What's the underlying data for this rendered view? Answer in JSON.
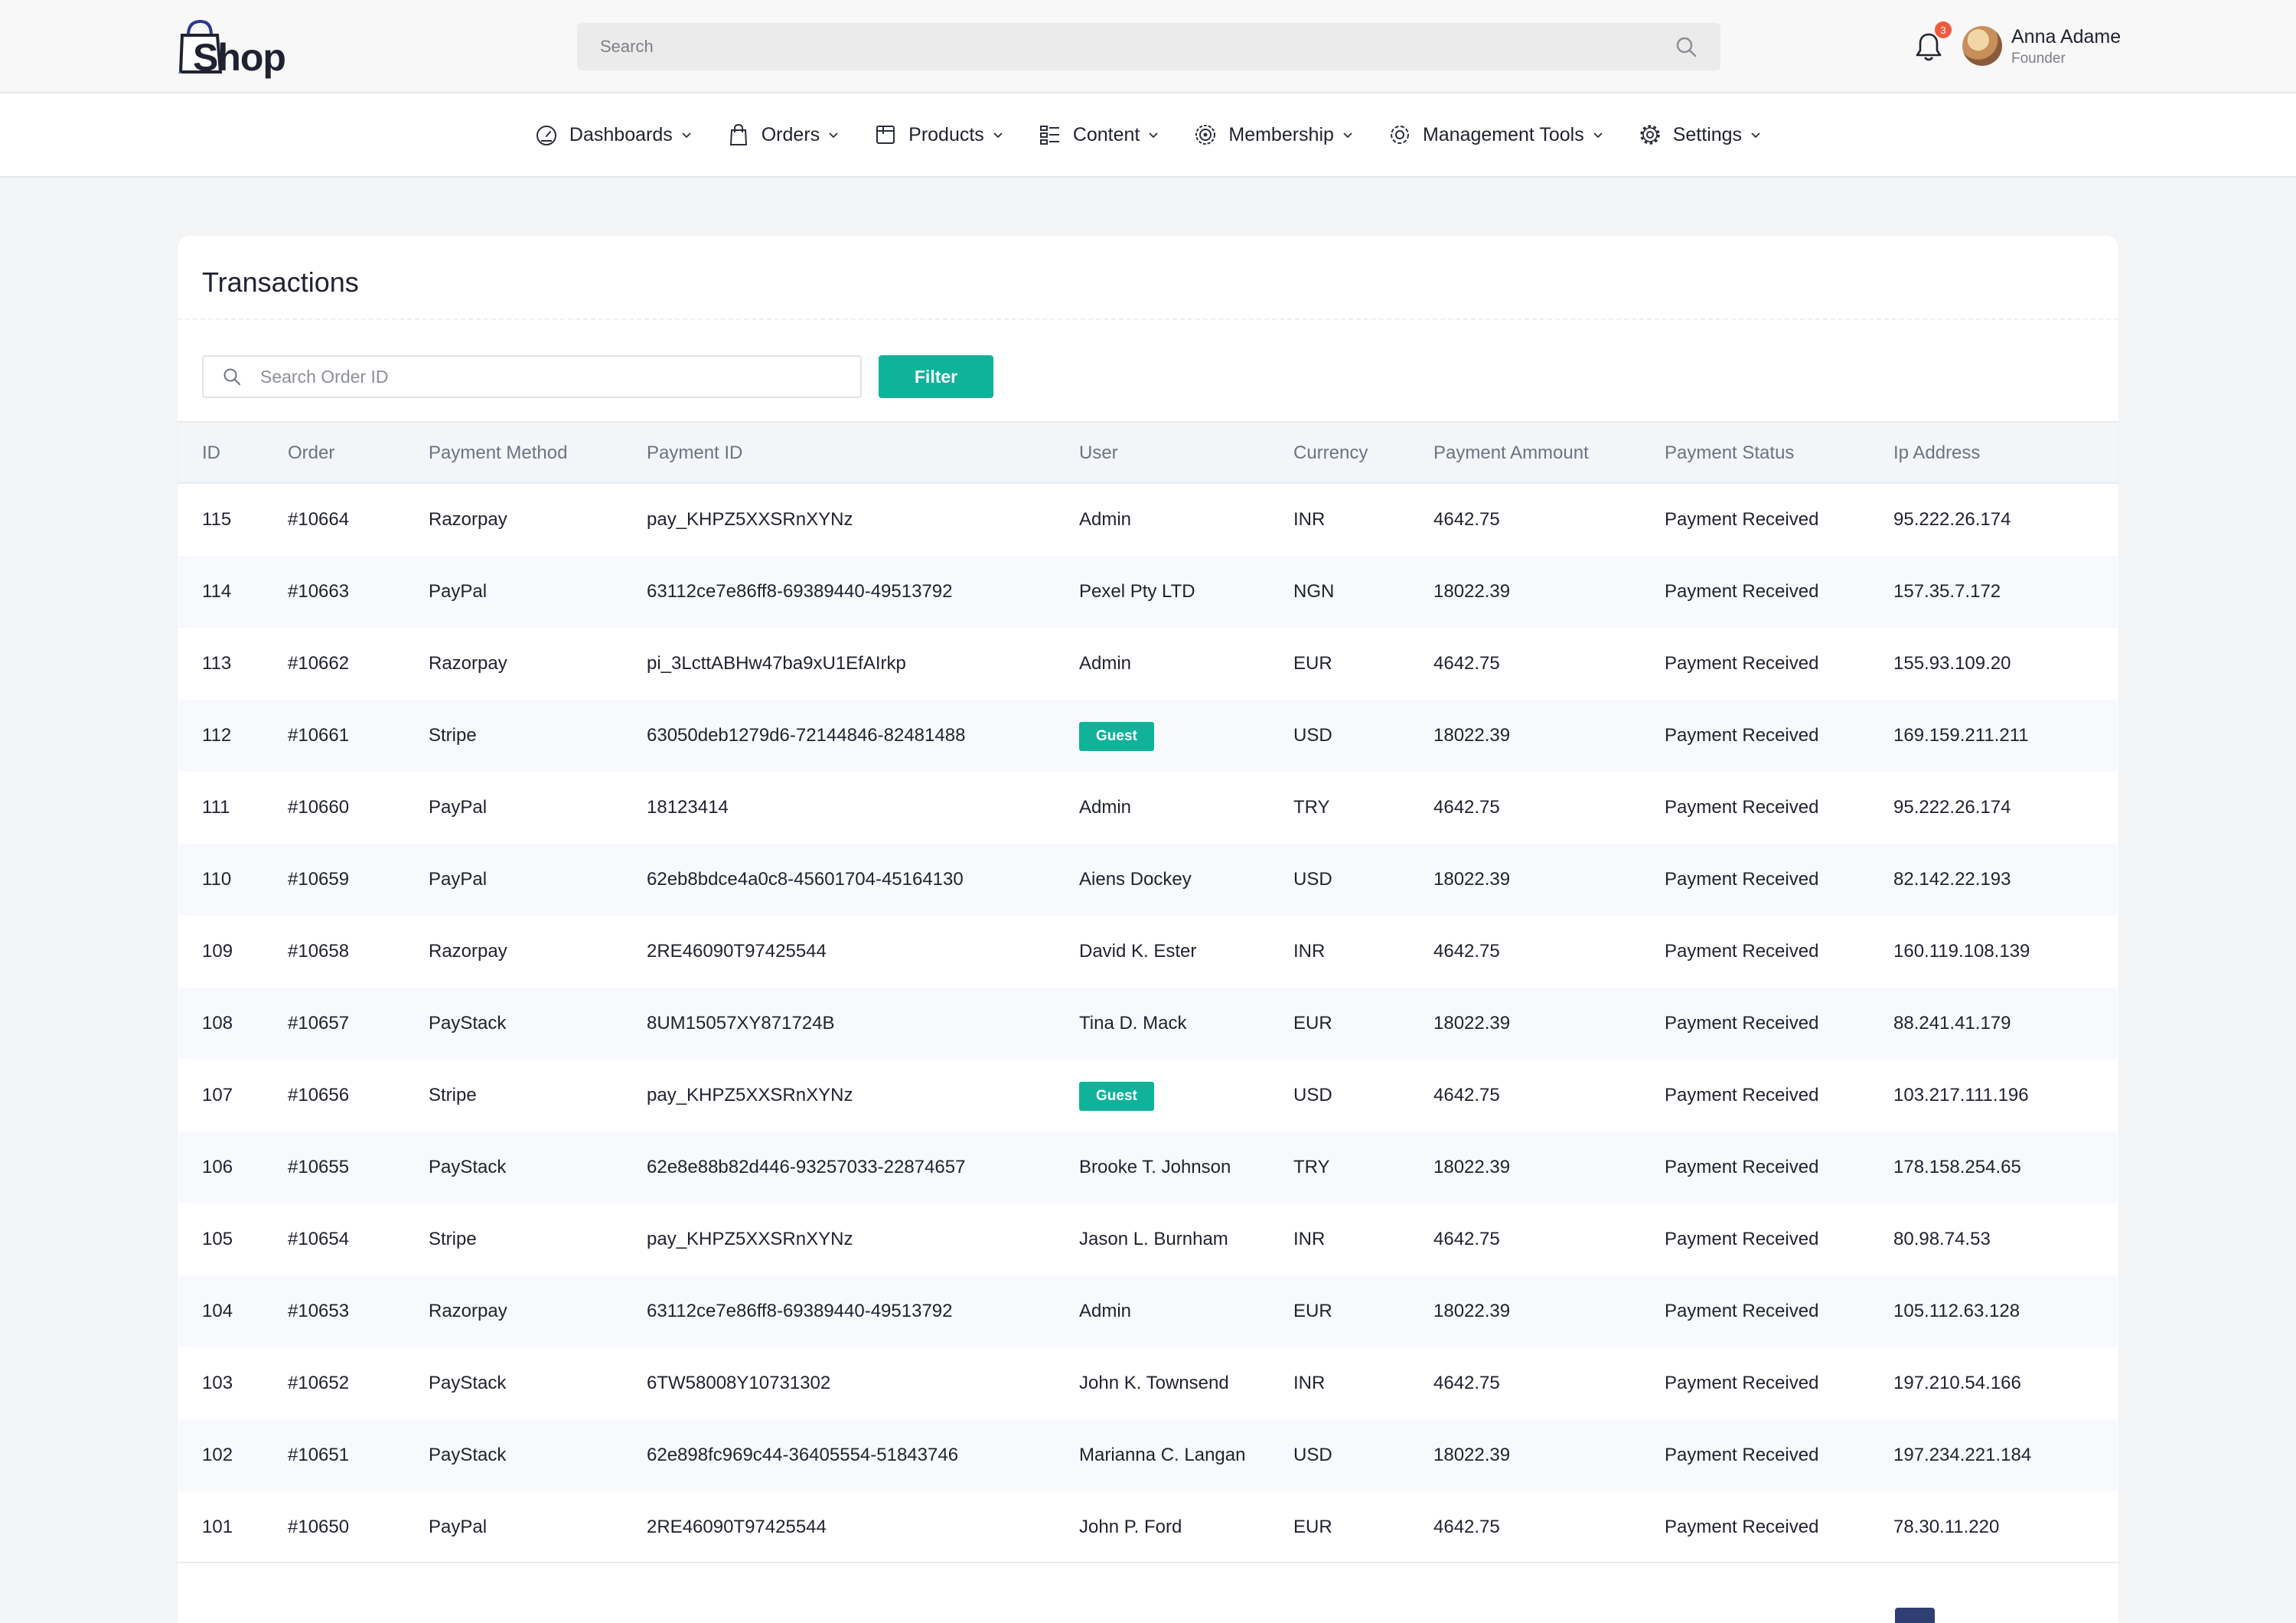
{
  "header": {
    "logo_text": "Shop",
    "search_placeholder": "Search",
    "notification_count": "3",
    "user": {
      "name": "Anna Adame",
      "role": "Founder"
    }
  },
  "nav": [
    {
      "label": "Dashboards",
      "icon": "speedometer-icon"
    },
    {
      "label": "Orders",
      "icon": "shopping-bag-icon"
    },
    {
      "label": "Products",
      "icon": "box-icon"
    },
    {
      "label": "Content",
      "icon": "list-icon"
    },
    {
      "label": "Membership",
      "icon": "badge-icon"
    },
    {
      "label": "Management Tools",
      "icon": "settings-alt-icon"
    },
    {
      "label": "Settings",
      "icon": "gear-icon"
    }
  ],
  "transactions": {
    "title": "Transactions",
    "search_placeholder": "Search Order ID",
    "filter_label": "Filter",
    "columns": [
      "ID",
      "Order",
      "Payment Method",
      "Payment ID",
      "User",
      "Currency",
      "Payment Ammount",
      "Payment Status",
      "Ip Address"
    ],
    "rows": [
      {
        "id": "115",
        "order": "#10664",
        "method": "Razorpay",
        "payment_id": "pay_KHPZ5XXSRnXYNz",
        "user": "Admin",
        "guest": false,
        "currency": "INR",
        "amount": "4642.75",
        "status": "Payment Received",
        "ip": "95.222.26.174"
      },
      {
        "id": "114",
        "order": "#10663",
        "method": "PayPal",
        "payment_id": "63112ce7e86ff8-69389440-49513792",
        "user": "Pexel Pty LTD",
        "guest": false,
        "currency": "NGN",
        "amount": "18022.39",
        "status": "Payment Received",
        "ip": "157.35.7.172"
      },
      {
        "id": "113",
        "order": "#10662",
        "method": "Razorpay",
        "payment_id": "pi_3LcttABHw47ba9xU1EfAIrkp",
        "user": "Admin",
        "guest": false,
        "currency": "EUR",
        "amount": "4642.75",
        "status": "Payment Received",
        "ip": "155.93.109.20"
      },
      {
        "id": "112",
        "order": "#10661",
        "method": "Stripe",
        "payment_id": "63050deb1279d6-72144846-82481488",
        "user": "Guest",
        "guest": true,
        "currency": "USD",
        "amount": "18022.39",
        "status": "Payment Received",
        "ip": "169.159.211.211"
      },
      {
        "id": "111",
        "order": "#10660",
        "method": "PayPal",
        "payment_id": "18123414",
        "user": "Admin",
        "guest": false,
        "currency": "TRY",
        "amount": "4642.75",
        "status": "Payment Received",
        "ip": "95.222.26.174"
      },
      {
        "id": "110",
        "order": "#10659",
        "method": "PayPal",
        "payment_id": "62eb8bdce4a0c8-45601704-45164130",
        "user": "Aiens Dockey",
        "guest": false,
        "currency": "USD",
        "amount": "18022.39",
        "status": "Payment Received",
        "ip": "82.142.22.193"
      },
      {
        "id": "109",
        "order": "#10658",
        "method": "Razorpay",
        "payment_id": "2RE46090T97425544",
        "user": "David K. Ester",
        "guest": false,
        "currency": "INR",
        "amount": "4642.75",
        "status": "Payment Received",
        "ip": "160.119.108.139"
      },
      {
        "id": "108",
        "order": "#10657",
        "method": "PayStack",
        "payment_id": "8UM15057XY871724B",
        "user": "Tina D. Mack",
        "guest": false,
        "currency": "EUR",
        "amount": "18022.39",
        "status": "Payment Received",
        "ip": "88.241.41.179"
      },
      {
        "id": "107",
        "order": "#10656",
        "method": "Stripe",
        "payment_id": "pay_KHPZ5XXSRnXYNz",
        "user": "Guest",
        "guest": true,
        "currency": "USD",
        "amount": "4642.75",
        "status": "Payment Received",
        "ip": "103.217.111.196"
      },
      {
        "id": "106",
        "order": "#10655",
        "method": "PayStack",
        "payment_id": "62e8e88b82d446-93257033-22874657",
        "user": "Brooke T. Johnson",
        "guest": false,
        "currency": "TRY",
        "amount": "18022.39",
        "status": "Payment Received",
        "ip": "178.158.254.65"
      },
      {
        "id": "105",
        "order": "#10654",
        "method": "Stripe",
        "payment_id": "pay_KHPZ5XXSRnXYNz",
        "user": "Jason L. Burnham",
        "guest": false,
        "currency": "INR",
        "amount": "4642.75",
        "status": "Payment Received",
        "ip": "80.98.74.53"
      },
      {
        "id": "104",
        "order": "#10653",
        "method": "Razorpay",
        "payment_id": "63112ce7e86ff8-69389440-49513792",
        "user": "Admin",
        "guest": false,
        "currency": "EUR",
        "amount": "18022.39",
        "status": "Payment Received",
        "ip": "105.112.63.128"
      },
      {
        "id": "103",
        "order": "#10652",
        "method": "PayStack",
        "payment_id": "6TW58008Y10731302",
        "user": "John K. Townsend",
        "guest": false,
        "currency": "INR",
        "amount": "4642.75",
        "status": "Payment Received",
        "ip": "197.210.54.166"
      },
      {
        "id": "102",
        "order": "#10651",
        "method": "PayStack",
        "payment_id": "62e898fc969c44-36405554-51843746",
        "user": "Marianna C. Langan",
        "guest": false,
        "currency": "USD",
        "amount": "18022.39",
        "status": "Payment Received",
        "ip": "197.234.221.184"
      },
      {
        "id": "101",
        "order": "#10650",
        "method": "PayPal",
        "payment_id": "2RE46090T97425544",
        "user": "John P. Ford",
        "guest": false,
        "currency": "EUR",
        "amount": "4642.75",
        "status": "Payment Received",
        "ip": "78.30.11.220"
      }
    ]
  },
  "colors": {
    "accent": "#10b29a",
    "badge": "#f05a3c",
    "pagination": "#2f3e73"
  }
}
